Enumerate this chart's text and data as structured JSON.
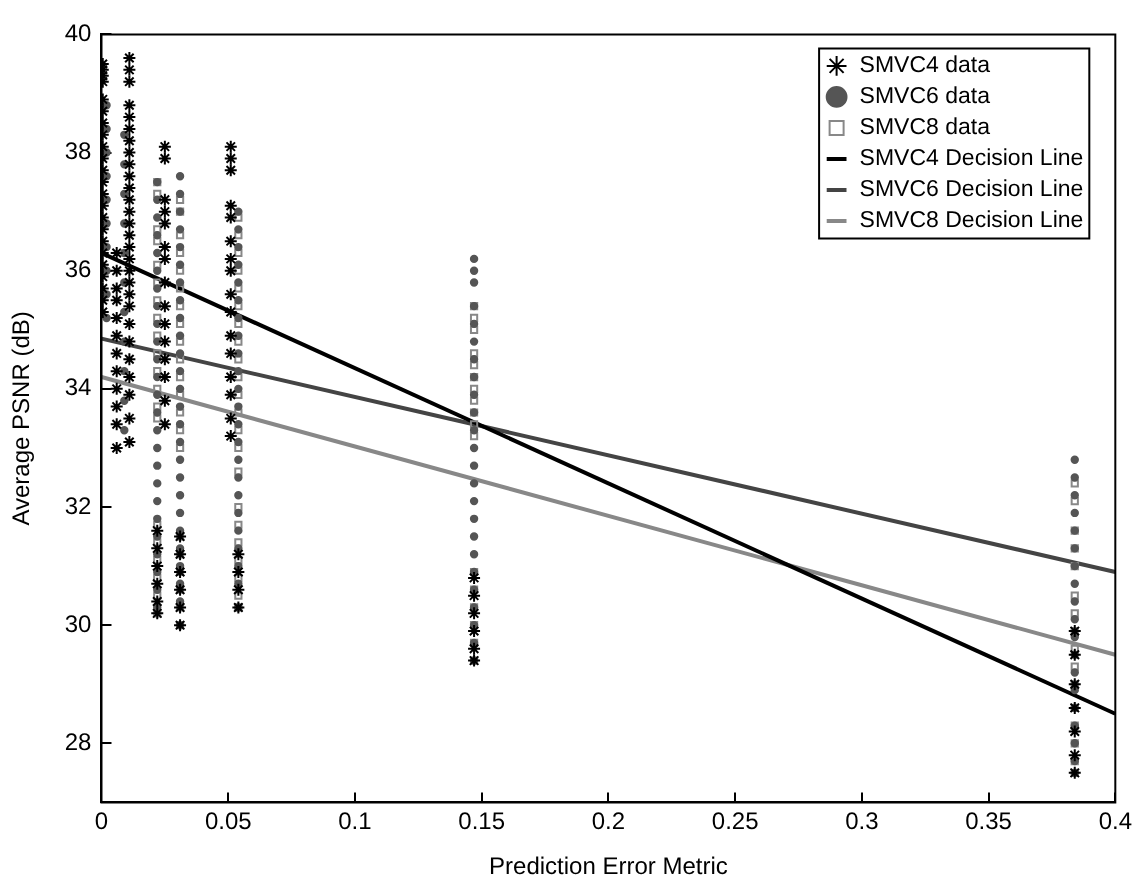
{
  "chart_data": {
    "type": "scatter",
    "xlabel": "Prediction Error Metric",
    "ylabel": "Average PSNR (dB)",
    "xlim": [
      0,
      0.4
    ],
    "xticks": [
      0,
      0.05,
      0.1,
      0.15,
      0.2,
      0.25,
      0.3,
      0.35,
      0.4
    ],
    "ylim": [
      27,
      40
    ],
    "yticks": [
      28,
      30,
      32,
      34,
      36,
      38,
      40
    ],
    "grid": false,
    "legend": "top right",
    "series": [
      {
        "name": "SMVC4 data",
        "type": "scatter",
        "marker": "cross",
        "color": "#000000",
        "x": [
          0.0005,
          0.0005,
          0.0005,
          0.0005,
          0.0005,
          0.0005,
          0.0005,
          0.0005,
          0.0005,
          0.0005,
          0.0005,
          0.0005,
          0.0005,
          0.0005,
          0.0005,
          0.0005,
          0.0005,
          0.0005,
          0.0005,
          0.0005,
          0.0005,
          0.0005,
          0.0005,
          0.006,
          0.006,
          0.006,
          0.006,
          0.006,
          0.006,
          0.006,
          0.006,
          0.006,
          0.006,
          0.006,
          0.006,
          0.011,
          0.011,
          0.011,
          0.011,
          0.011,
          0.011,
          0.011,
          0.011,
          0.011,
          0.011,
          0.011,
          0.011,
          0.011,
          0.011,
          0.011,
          0.011,
          0.011,
          0.011,
          0.011,
          0.011,
          0.011,
          0.011,
          0.011,
          0.011,
          0.011,
          0.011,
          0.011,
          0.011,
          0.022,
          0.022,
          0.022,
          0.022,
          0.022,
          0.022,
          0.025,
          0.025,
          0.025,
          0.025,
          0.025,
          0.025,
          0.025,
          0.025,
          0.025,
          0.025,
          0.025,
          0.025,
          0.025,
          0.025,
          0.025,
          0.031,
          0.031,
          0.031,
          0.031,
          0.031,
          0.031,
          0.051,
          0.051,
          0.051,
          0.051,
          0.051,
          0.051,
          0.051,
          0.051,
          0.051,
          0.051,
          0.051,
          0.051,
          0.051,
          0.051,
          0.051,
          0.051,
          0.054,
          0.054,
          0.054,
          0.054,
          0.147,
          0.147,
          0.147,
          0.147,
          0.147,
          0.147,
          0.384,
          0.384,
          0.384,
          0.384,
          0.384,
          0.384,
          0.384
        ],
        "values": [
          39.5,
          39.4,
          39.3,
          39.2,
          38.9,
          38.7,
          38.5,
          38.3,
          38.1,
          37.9,
          37.7,
          37.5,
          37.3,
          37.1,
          36.9,
          36.7,
          36.5,
          36.3,
          36.1,
          35.9,
          35.7,
          35.5,
          35.3,
          36.3,
          36.0,
          35.7,
          35.5,
          35.2,
          34.9,
          34.6,
          34.3,
          34.0,
          33.7,
          33.4,
          33.0,
          39.6,
          39.4,
          39.2,
          38.8,
          38.6,
          38.4,
          38.2,
          38.0,
          37.8,
          37.6,
          37.4,
          37.2,
          37.0,
          36.8,
          36.6,
          36.4,
          36.2,
          36.0,
          35.8,
          35.6,
          35.4,
          35.1,
          34.8,
          34.5,
          34.2,
          33.9,
          33.5,
          33.1,
          31.6,
          31.3,
          31.0,
          30.7,
          30.4,
          30.2,
          38.1,
          37.9,
          37.2,
          37.0,
          36.8,
          36.4,
          36.2,
          35.8,
          35.4,
          35.1,
          34.8,
          34.5,
          34.2,
          33.8,
          33.4,
          31.5,
          31.2,
          30.9,
          30.6,
          30.3,
          30.0,
          38.1,
          37.9,
          37.7,
          37.1,
          36.9,
          36.5,
          36.2,
          36.0,
          35.6,
          35.3,
          34.9,
          34.6,
          34.2,
          33.9,
          33.5,
          33.2,
          31.2,
          30.9,
          30.6,
          30.3,
          30.8,
          30.5,
          30.2,
          29.9,
          29.6,
          29.4,
          29.9,
          29.5,
          29.0,
          28.6,
          28.2,
          27.8,
          27.5
        ]
      },
      {
        "name": "SMVC6 data",
        "type": "scatter",
        "marker": "circle",
        "color": "#555555",
        "x": [
          0.002,
          0.002,
          0.002,
          0.002,
          0.002,
          0.002,
          0.002,
          0.002,
          0.002,
          0.002,
          0.009,
          0.009,
          0.009,
          0.009,
          0.009,
          0.009,
          0.009,
          0.009,
          0.009,
          0.009,
          0.009,
          0.022,
          0.022,
          0.022,
          0.022,
          0.022,
          0.022,
          0.022,
          0.022,
          0.022,
          0.022,
          0.022,
          0.022,
          0.022,
          0.022,
          0.022,
          0.022,
          0.022,
          0.022,
          0.022,
          0.022,
          0.022,
          0.022,
          0.022,
          0.022,
          0.022,
          0.031,
          0.031,
          0.031,
          0.031,
          0.031,
          0.031,
          0.031,
          0.031,
          0.031,
          0.031,
          0.031,
          0.031,
          0.031,
          0.031,
          0.031,
          0.031,
          0.031,
          0.031,
          0.031,
          0.031,
          0.031,
          0.031,
          0.031,
          0.031,
          0.031,
          0.031,
          0.054,
          0.054,
          0.054,
          0.054,
          0.054,
          0.054,
          0.054,
          0.054,
          0.054,
          0.054,
          0.054,
          0.054,
          0.054,
          0.054,
          0.054,
          0.054,
          0.054,
          0.054,
          0.054,
          0.054,
          0.054,
          0.054,
          0.054,
          0.147,
          0.147,
          0.147,
          0.147,
          0.147,
          0.147,
          0.147,
          0.147,
          0.147,
          0.147,
          0.147,
          0.147,
          0.147,
          0.147,
          0.147,
          0.147,
          0.147,
          0.147,
          0.147,
          0.147,
          0.147,
          0.147,
          0.147,
          0.147,
          0.384,
          0.384,
          0.384,
          0.384,
          0.384,
          0.384,
          0.384,
          0.384,
          0.384,
          0.384,
          0.384,
          0.384,
          0.384,
          0.384,
          0.384,
          0.384,
          0.384,
          0.384,
          0.384
        ],
        "values": [
          38.8,
          38.4,
          38.0,
          37.6,
          37.2,
          36.8,
          36.4,
          36.0,
          35.6,
          35.2,
          38.3,
          37.8,
          37.3,
          36.8,
          36.3,
          35.8,
          35.3,
          34.8,
          34.3,
          33.8,
          33.3,
          37.5,
          37.2,
          36.9,
          36.6,
          36.3,
          36.0,
          35.7,
          35.4,
          35.1,
          34.8,
          34.5,
          34.2,
          33.9,
          33.6,
          33.3,
          33.0,
          32.7,
          32.4,
          32.1,
          31.8,
          31.5,
          31.2,
          30.9,
          30.6,
          30.3,
          37.6,
          37.3,
          37.0,
          36.7,
          36.4,
          36.1,
          35.8,
          35.5,
          35.2,
          34.9,
          34.6,
          34.3,
          34.0,
          33.7,
          33.4,
          33.1,
          32.8,
          32.5,
          32.2,
          31.9,
          31.6,
          31.3,
          31.0,
          30.7,
          30.4,
          30.0,
          37.0,
          36.7,
          36.4,
          36.1,
          35.8,
          35.5,
          35.2,
          34.9,
          34.6,
          34.3,
          34.0,
          33.7,
          33.4,
          33.1,
          32.8,
          32.5,
          32.2,
          31.9,
          31.6,
          31.3,
          31.0,
          30.7,
          30.3,
          36.2,
          36.0,
          35.8,
          35.4,
          35.1,
          34.8,
          34.5,
          34.2,
          33.9,
          33.6,
          33.3,
          33.0,
          32.7,
          32.4,
          32.1,
          31.8,
          31.5,
          31.2,
          30.9,
          30.6,
          30.3,
          30.0,
          29.7,
          29.4,
          32.8,
          32.5,
          32.2,
          31.9,
          31.6,
          31.3,
          31.0,
          30.7,
          30.4,
          30.1,
          29.8,
          29.5,
          29.2,
          28.9,
          28.6,
          28.3,
          28.0,
          27.7,
          27.5
        ]
      },
      {
        "name": "SMVC8 data",
        "type": "scatter",
        "marker": "square",
        "color": "#888888",
        "x": [
          0.022,
          0.022,
          0.022,
          0.022,
          0.022,
          0.022,
          0.022,
          0.022,
          0.022,
          0.022,
          0.022,
          0.022,
          0.022,
          0.022,
          0.022,
          0.022,
          0.022,
          0.022,
          0.022,
          0.022,
          0.031,
          0.031,
          0.031,
          0.031,
          0.031,
          0.031,
          0.031,
          0.031,
          0.031,
          0.031,
          0.031,
          0.031,
          0.031,
          0.031,
          0.031,
          0.031,
          0.031,
          0.031,
          0.031,
          0.031,
          0.031,
          0.054,
          0.054,
          0.054,
          0.054,
          0.054,
          0.054,
          0.054,
          0.054,
          0.054,
          0.054,
          0.054,
          0.054,
          0.054,
          0.054,
          0.054,
          0.054,
          0.054,
          0.054,
          0.054,
          0.054,
          0.054,
          0.054,
          0.147,
          0.147,
          0.147,
          0.147,
          0.147,
          0.147,
          0.147,
          0.147,
          0.147,
          0.147,
          0.147,
          0.147,
          0.147,
          0.147,
          0.147,
          0.147,
          0.147,
          0.384,
          0.384,
          0.384,
          0.384,
          0.384,
          0.384,
          0.384,
          0.384,
          0.384,
          0.384,
          0.384,
          0.384,
          0.384,
          0.384,
          0.384,
          0.384
        ],
        "values": [
          37.5,
          37.3,
          36.7,
          36.5,
          36.1,
          35.8,
          35.5,
          35.2,
          34.9,
          34.6,
          34.3,
          34.0,
          33.7,
          33.5,
          31.7,
          31.4,
          31.1,
          30.8,
          30.5,
          30.2,
          37.2,
          37.0,
          36.6,
          36.3,
          36.0,
          35.7,
          35.4,
          35.1,
          34.8,
          34.5,
          34.2,
          33.9,
          33.6,
          33.3,
          33.0,
          31.5,
          31.2,
          30.9,
          30.6,
          30.3,
          30.0,
          36.9,
          36.6,
          36.3,
          36.0,
          35.7,
          35.4,
          35.1,
          34.8,
          34.5,
          34.2,
          33.9,
          33.6,
          33.3,
          33.0,
          32.6,
          32.0,
          31.7,
          31.4,
          31.1,
          30.8,
          30.5,
          30.3,
          35.4,
          35.2,
          35.0,
          34.6,
          34.4,
          34.2,
          34.0,
          33.8,
          33.6,
          33.4,
          33.2,
          30.9,
          30.6,
          30.3,
          30.0,
          29.7,
          29.4,
          32.4,
          32.1,
          31.6,
          31.3,
          31.0,
          30.5,
          30.2,
          29.9,
          29.6,
          29.3,
          29.0,
          28.6,
          28.3,
          28.0,
          27.7,
          27.5
        ]
      },
      {
        "name": "SMVC4 Decision Line",
        "type": "line",
        "marker": "none",
        "line_style": "solid",
        "color": "#000000",
        "x": [
          0,
          0.4
        ],
        "values": [
          36.3,
          28.5
        ]
      },
      {
        "name": "SMVC6 Decision Line",
        "type": "line",
        "marker": "none",
        "line_style": "solid",
        "color": "#444444",
        "x": [
          0,
          0.4
        ],
        "values": [
          34.85,
          30.9
        ]
      },
      {
        "name": "SMVC8 Decision Line",
        "type": "line",
        "marker": "none",
        "line_style": "solid",
        "color": "#888888",
        "x": [
          0,
          0.4
        ],
        "values": [
          34.2,
          29.5
        ]
      }
    ]
  }
}
